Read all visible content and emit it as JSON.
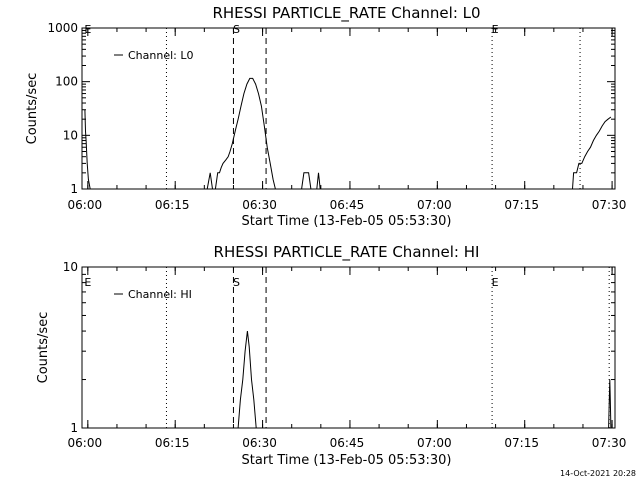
{
  "chart_data": [
    {
      "type": "line",
      "title": "RHESSI PARTICLE_RATE Channel: L0",
      "xlabel": "Start Time (13-Feb-05 05:53:30)",
      "ylabel": "Counts/sec",
      "yscale": "log",
      "ylim": [
        1,
        1000
      ],
      "xlim": [
        5.5,
        97
      ],
      "xticks": [
        {
          "t": 6.5,
          "label": "06:00"
        },
        {
          "t": 21.5,
          "label": "06:15"
        },
        {
          "t": 36.5,
          "label": "06:30"
        },
        {
          "t": 51.5,
          "label": "06:45"
        },
        {
          "t": 66.5,
          "label": "07:00"
        },
        {
          "t": 81.5,
          "label": "07:15"
        },
        {
          "t": 96.5,
          "label": "07:30"
        }
      ],
      "yticks": [
        {
          "v": 1,
          "label": "1"
        },
        {
          "v": 10,
          "label": "10"
        },
        {
          "v": 100,
          "label": "100"
        },
        {
          "v": 1000,
          "label": "1000"
        }
      ],
      "legend": {
        "position": "top-left",
        "entries": [
          "Channel: L0"
        ]
      },
      "markers": [
        {
          "t": 6.0,
          "label": "E",
          "style": "none"
        },
        {
          "t": 20.0,
          "label": "",
          "style": "dotted"
        },
        {
          "t": 31.5,
          "label": "S",
          "style": "dashed"
        },
        {
          "t": 37.1,
          "label": "",
          "style": "dashed"
        },
        {
          "t": 75.9,
          "label": "E",
          "style": "dotted"
        },
        {
          "t": 91.0,
          "label": "",
          "style": "dotted"
        }
      ],
      "series": [
        {
          "name": "Channel: L0",
          "segments": [
            [
              [
                6.0,
                30
              ],
              [
                6.1,
                12
              ],
              [
                6.2,
                8
              ],
              [
                6.4,
                3
              ],
              [
                6.6,
                1.5
              ],
              [
                6.9,
                1
              ]
            ],
            [
              [
                27.0,
                1
              ],
              [
                27.5,
                2
              ],
              [
                27.9,
                1
              ],
              [
                28.4,
                1
              ],
              [
                28.8,
                2
              ],
              [
                29.1,
                2
              ],
              [
                29.4,
                2.5
              ],
              [
                29.7,
                3
              ],
              [
                30.2,
                3.5
              ],
              [
                30.6,
                4
              ],
              [
                30.9,
                5
              ],
              [
                31.3,
                7
              ],
              [
                31.8,
                12
              ],
              [
                32.3,
                20
              ],
              [
                32.8,
                35
              ],
              [
                33.3,
                60
              ],
              [
                33.8,
                90
              ],
              [
                34.3,
                115
              ],
              [
                34.8,
                115
              ],
              [
                35.3,
                90
              ],
              [
                35.8,
                60
              ],
              [
                36.3,
                35
              ],
              [
                36.8,
                15
              ],
              [
                37.3,
                6
              ],
              [
                37.8,
                3
              ],
              [
                38.3,
                1.5
              ],
              [
                38.7,
                1
              ]
            ],
            [
              [
                43.2,
                1
              ],
              [
                43.6,
                2
              ],
              [
                44.4,
                2
              ],
              [
                44.8,
                1
              ]
            ],
            [
              [
                45.8,
                1
              ],
              [
                46.1,
                2
              ],
              [
                46.4,
                1
              ]
            ],
            [
              [
                89.7,
                1
              ],
              [
                89.9,
                2
              ],
              [
                90.4,
                2
              ],
              [
                90.8,
                3
              ],
              [
                91.3,
                3
              ],
              [
                91.8,
                4
              ],
              [
                92.3,
                5
              ],
              [
                92.8,
                6
              ],
              [
                93.3,
                8
              ],
              [
                93.8,
                10
              ],
              [
                94.3,
                12
              ],
              [
                94.8,
                15
              ],
              [
                95.3,
                18
              ],
              [
                95.8,
                20
              ],
              [
                96.3,
                22
              ]
            ]
          ]
        }
      ]
    },
    {
      "type": "line",
      "title": "RHESSI PARTICLE_RATE Channel: HI",
      "xlabel": "Start Time (13-Feb-05 05:53:30)",
      "ylabel": "Counts/sec",
      "yscale": "log",
      "ylim": [
        1,
        10
      ],
      "xlim": [
        5.5,
        97
      ],
      "xticks": [
        {
          "t": 6.5,
          "label": "06:00"
        },
        {
          "t": 21.5,
          "label": "06:15"
        },
        {
          "t": 36.5,
          "label": "06:30"
        },
        {
          "t": 51.5,
          "label": "06:45"
        },
        {
          "t": 66.5,
          "label": "07:00"
        },
        {
          "t": 81.5,
          "label": "07:15"
        },
        {
          "t": 96.5,
          "label": "07:30"
        }
      ],
      "yticks": [
        {
          "v": 1,
          "label": "1"
        },
        {
          "v": 10,
          "label": "10"
        }
      ],
      "legend": {
        "position": "top-left",
        "entries": [
          "Channel: HI"
        ]
      },
      "markers": [
        {
          "t": 6.0,
          "label": "E",
          "style": "none"
        },
        {
          "t": 20.0,
          "label": "",
          "style": "dotted"
        },
        {
          "t": 31.5,
          "label": "S",
          "style": "dashed"
        },
        {
          "t": 37.1,
          "label": "",
          "style": "dashed"
        },
        {
          "t": 75.9,
          "label": "E",
          "style": "dotted"
        },
        {
          "t": 96.0,
          "label": "",
          "style": "dotted"
        }
      ],
      "series": [
        {
          "name": "Channel: HI",
          "segments": [
            [
              [
                32.3,
                1
              ],
              [
                32.7,
                1.5
              ],
              [
                33.1,
                2
              ],
              [
                33.5,
                3
              ],
              [
                33.9,
                4
              ],
              [
                34.2,
                3.2
              ],
              [
                34.6,
                2
              ],
              [
                35.0,
                1.5
              ],
              [
                35.4,
                1
              ]
            ],
            [
              [
                95.9,
                1
              ],
              [
                96.1,
                2
              ],
              [
                96.2,
                1.5
              ],
              [
                96.3,
                1
              ]
            ]
          ]
        }
      ]
    }
  ],
  "footer": {
    "timestamp": "14-Oct-2021 20:28"
  }
}
